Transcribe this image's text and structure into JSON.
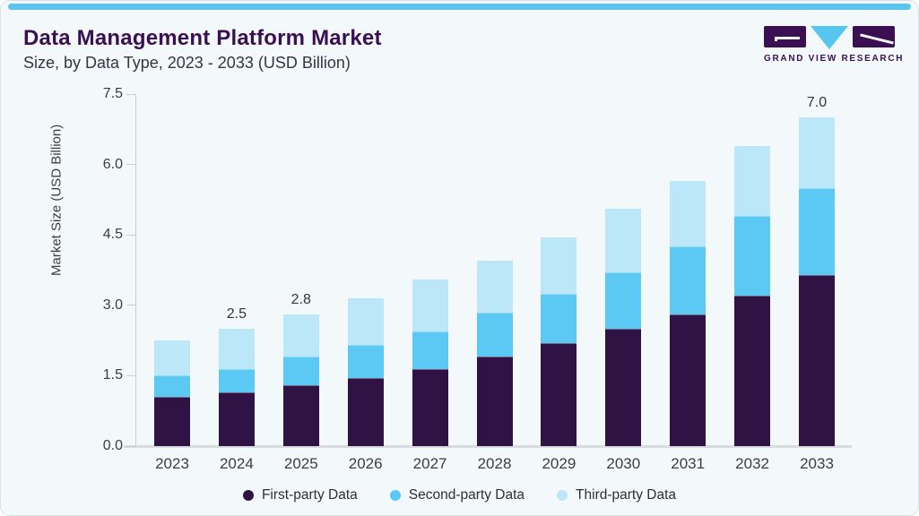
{
  "header": {
    "title": "Data Management Platform Market",
    "subtitle": "Size, by Data Type, 2023 - 2033 (USD Billion)"
  },
  "logo": {
    "text": "GRAND VIEW RESEARCH",
    "purple": "#3b1053",
    "blue": "#56c6ee"
  },
  "colors": {
    "card_background": "#f3f8fb",
    "card_border": "#d9e1e7",
    "top_strip": "#5ac4ec",
    "title_text": "#3b1053",
    "subtitle_text": "#35353f",
    "axis_text": "#3c3c44",
    "axis_line": "#c9ced4",
    "baseline": "#d8dcdf",
    "value_label_text": "#35353f"
  },
  "chart_data": {
    "type": "bar",
    "stacked": true,
    "title": "Data Management Platform Market Size, by Data Type, 2023 - 2033 (USD Billion)",
    "categories": [
      "2023",
      "2024",
      "2025",
      "2026",
      "2027",
      "2028",
      "2029",
      "2030",
      "2031",
      "2032",
      "2033"
    ],
    "series": [
      {
        "name": "First-party Data",
        "color": "#301345",
        "values": [
          1.05,
          1.15,
          1.3,
          1.45,
          1.65,
          1.9,
          2.2,
          2.5,
          2.8,
          3.2,
          3.65
        ]
      },
      {
        "name": "Second-party Data",
        "color": "#5bc9f4",
        "values": [
          0.45,
          0.5,
          0.6,
          0.7,
          0.8,
          0.95,
          1.05,
          1.2,
          1.45,
          1.7,
          1.85
        ]
      },
      {
        "name": "Third-party Data",
        "color": "#bce7f8",
        "values": [
          0.75,
          0.85,
          0.9,
          1.0,
          1.1,
          1.1,
          1.2,
          1.35,
          1.4,
          1.5,
          1.5
        ]
      }
    ],
    "totals": [
      2.25,
      2.5,
      2.8,
      3.15,
      3.55,
      3.95,
      4.45,
      5.05,
      5.65,
      6.4,
      7.0
    ],
    "bar_labels": [
      "",
      "2.5",
      "2.8",
      "",
      "",
      "",
      "",
      "",
      "",
      "",
      "7.0"
    ],
    "xlabel": "",
    "ylabel": "Market Size (USD Billion)",
    "yticks": [
      0.0,
      1.5,
      3.0,
      4.5,
      6.0,
      7.5
    ],
    "ytick_labels": [
      "0.0",
      "1.5",
      "3.0",
      "4.5",
      "6.0",
      "7.5"
    ],
    "ylim": [
      0,
      7.5
    ],
    "grid": false,
    "legend_position": "bottom"
  }
}
